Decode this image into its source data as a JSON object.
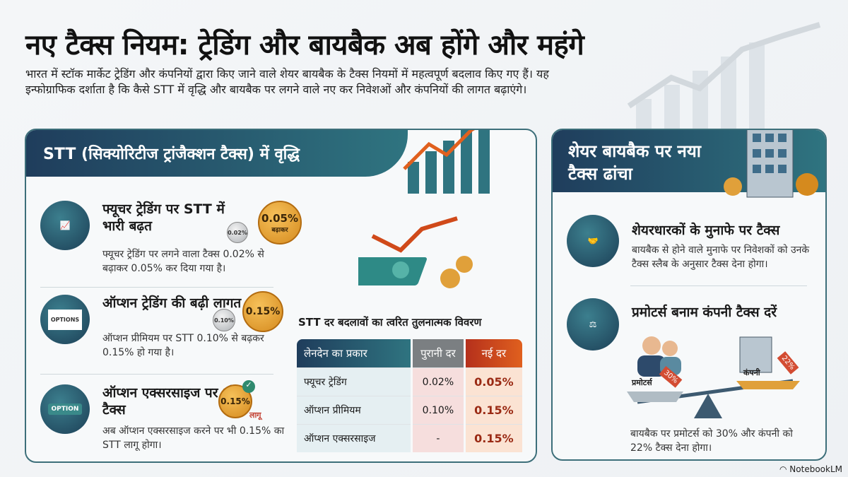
{
  "title": "नए टैक्स नियम: ट्रेडिंग और बायबैक अब होंगे और महंगे",
  "intro": "भारत में स्टॉक मार्केट ट्रेडिंग और कंपनियों द्वारा किए जाने वाले शेयर बायबैक के टैक्स नियमों में महत्वपूर्ण बदलाव किए गए हैं। यह इन्फोग्राफिक दर्शाता है कि कैसे STT में वृद्धि और बायबैक पर लगने वाले नए कर निवेशओं और कंपनियों की लागत बढ़ाएंगे।",
  "stt": {
    "heading": "STT (सिक्योरिटीज ट्रांजैक्शन टैक्स) में वृद्धि",
    "items": [
      {
        "icon": "laptop-chart-icon",
        "title": "फ्यूचर ट्रेडिंग पर STT में भारी बढ़त",
        "desc": "फ्यूचर ट्रेडिंग पर लगने वाला टैक्स 0.02% से बढ़ाकर 0.05% कर दिया गया है।",
        "old_coin": "0.02%",
        "new_coin": "0.05%",
        "coin_note": "बढ़ाकर"
      },
      {
        "icon": "options-document-icon",
        "icon_text": "OPTIONS",
        "title": "ऑप्शन ट्रेडिंग की बढ़ी लागत",
        "desc": "ऑप्शन प्रीमियम पर STT 0.10% से बढ़कर 0.15% हो गया है।",
        "old_coin": "0.10%",
        "new_coin": "0.15%"
      },
      {
        "icon": "option-button-icon",
        "icon_text": "OPTION",
        "title": "ऑप्शन एक्सरसाइज पर भी टैक्स",
        "desc": "अब ऑप्शन एक्सरसाइज करने पर भी 0.15% का STT लागू होगा।",
        "new_coin": "0.15%",
        "coin_note": "लागू"
      }
    ],
    "table": {
      "title": "STT दर बदलावों का त्वरित तुलनात्मक विवरण",
      "headers": [
        "लेनदेन का प्रकार",
        "पुरानी दर",
        "नई दर"
      ],
      "rows": [
        [
          "फ्यूचर ट्रेडिंग",
          "0.02%",
          "0.05%"
        ],
        [
          "ऑप्शन प्रीमियम",
          "0.10%",
          "0.15%"
        ],
        [
          "ऑप्शन एक्सरसाइज",
          "-",
          "0.15%"
        ]
      ]
    }
  },
  "buyback": {
    "heading": "शेयर बायबैक पर नया टैक्स ढांचा",
    "items": [
      {
        "icon": "handshake-moneybag-icon",
        "title": "शेयरधारकों के मुनाफे पर टैक्स",
        "desc": "बायबैक से होने वाले मुनाफे पर निवेशकों को उनके टैक्स स्लैब के अनुसार टैक्स देना होगा।"
      },
      {
        "icon": "scales-icon",
        "title": "प्रमोटर्स बनाम कंपनी टैक्स दरें",
        "desc": "बायबैक पर प्रमोटर्स को 30% और कंपनी को 22% टैक्स देना होगा।"
      }
    ],
    "promoters_label": "प्रमोटर्स",
    "promoters_tag": "30%",
    "company_label": "कंपनी",
    "company_tag": "22%"
  },
  "branding": "NotebookLM",
  "colors": {
    "header_dark": "#1f3d5c",
    "header_teal": "#2f7480",
    "new_rate": "#9a2a14",
    "gold": "#e0a03a"
  }
}
